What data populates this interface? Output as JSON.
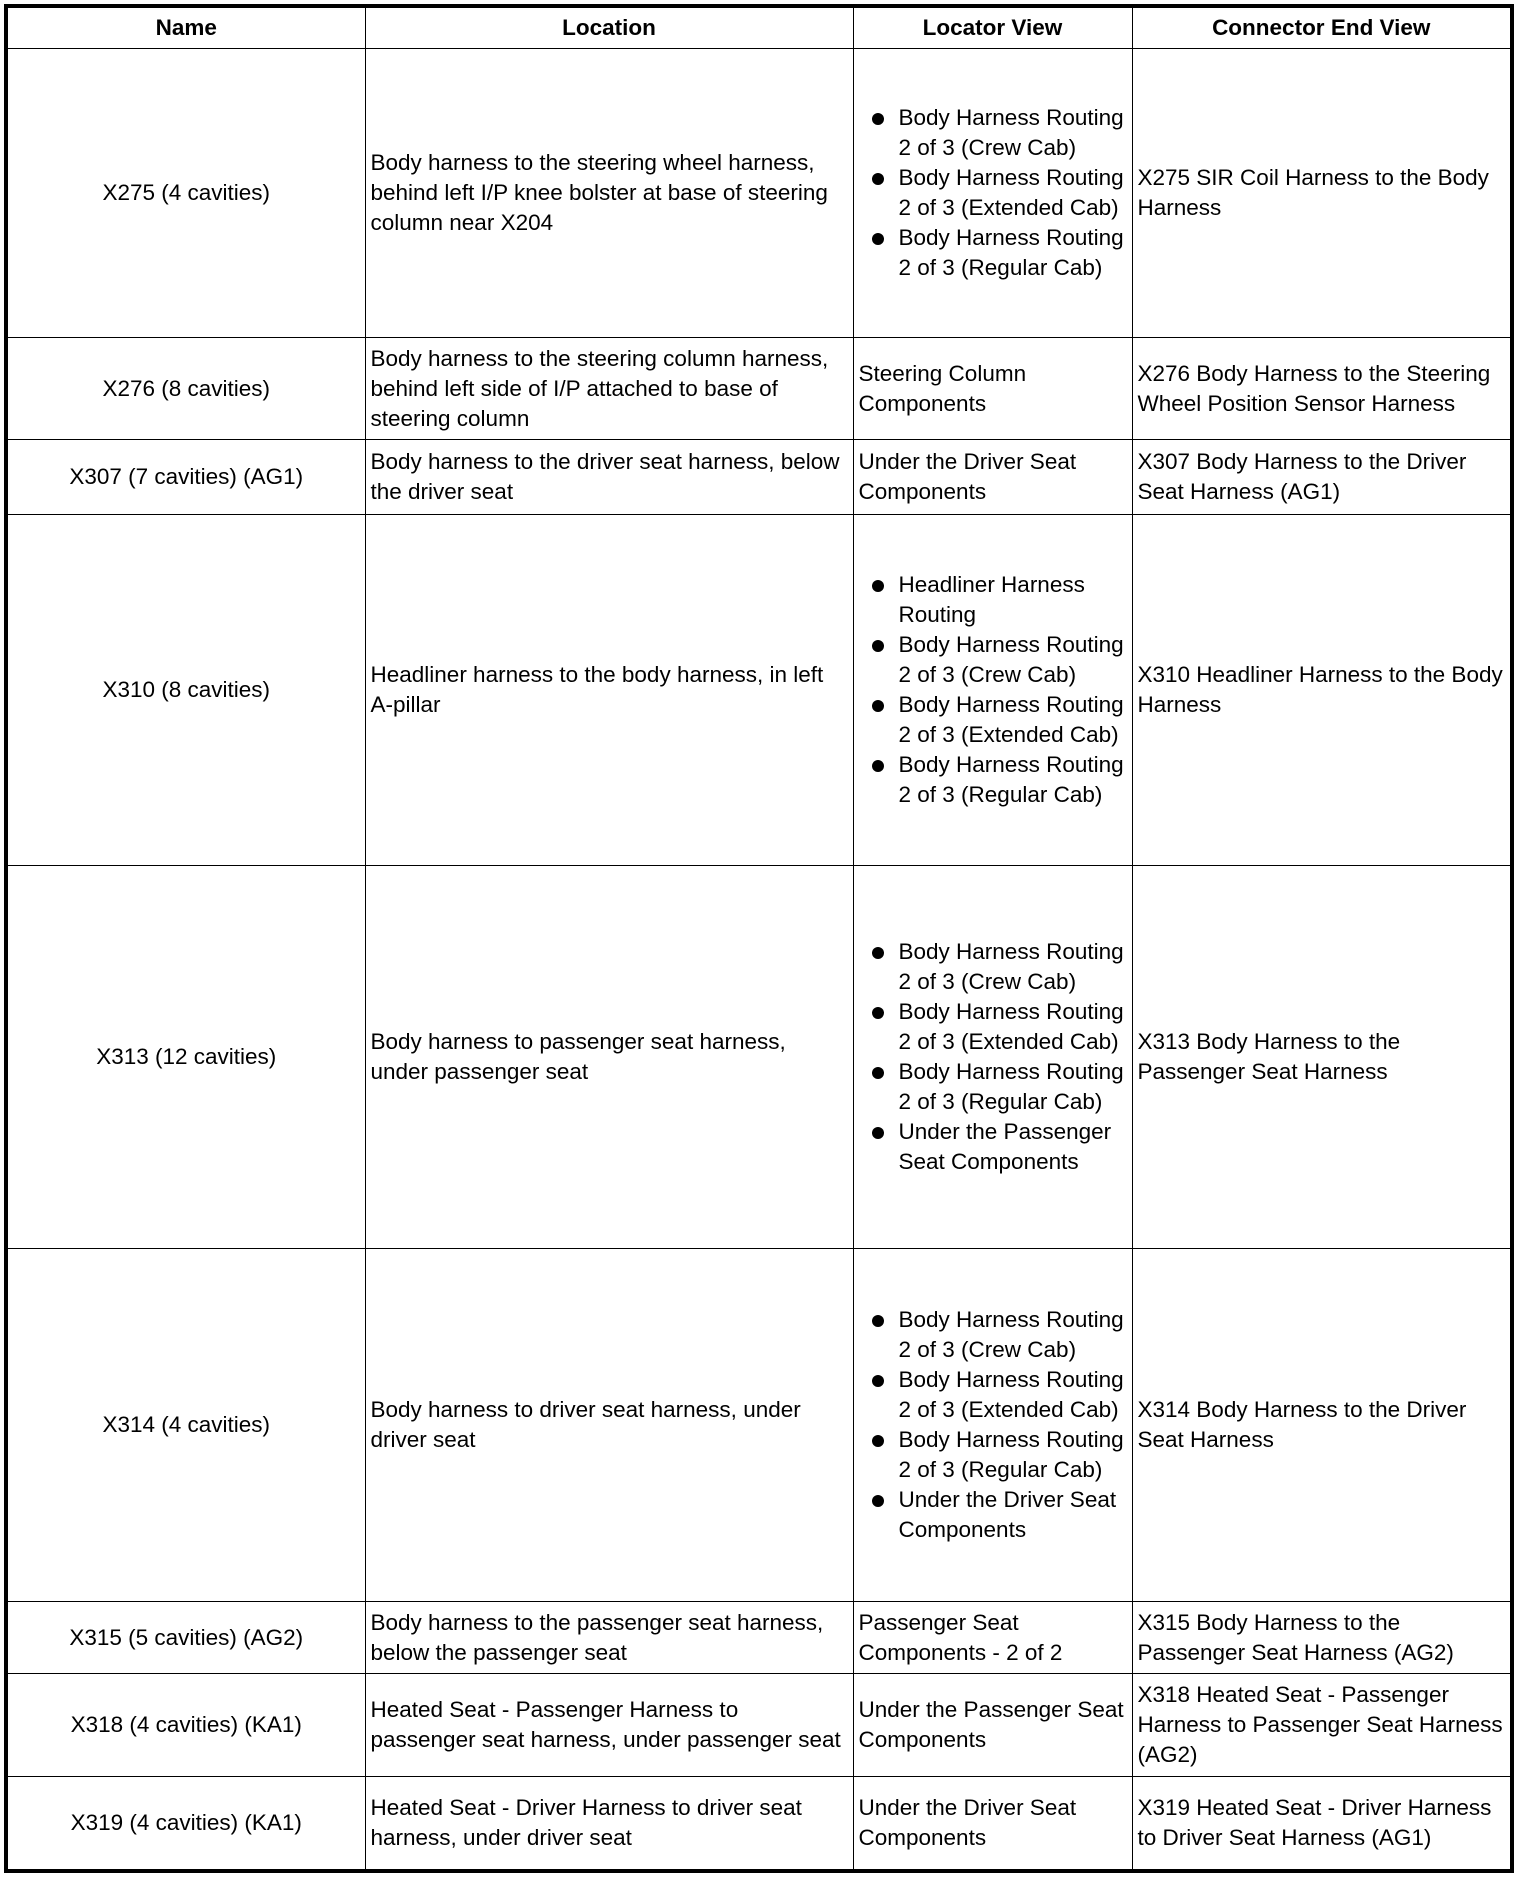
{
  "headers": [
    "Name",
    "Location",
    "Locator View",
    "Connector End View"
  ],
  "rows": [
    {
      "name": "X275 (4 cavities)",
      "location": "Body harness to the steering wheel harness, behind left I/P knee bolster at base of steering column near X204",
      "locator": [
        "Body Harness Routing 2 of 3 (Crew Cab)",
        "Body Harness Routing 2 of 3 (Extended Cab)",
        "Body Harness Routing 2 of 3 (Regular Cab)"
      ],
      "connector": "X275 SIR Coil Harness to the Body Harness"
    },
    {
      "name": "X276 (8 cavities)",
      "location": "Body harness to the steering column harness, behind left side of I/P attached to base of steering column",
      "locator": [
        "Steering Column Components"
      ],
      "connector": "X276 Body Harness to the Steering Wheel Position Sensor Harness"
    },
    {
      "name": "X307 (7 cavities) (AG1)",
      "location": "Body harness to the driver seat harness, below the driver seat",
      "locator": [
        "Under the Driver Seat Components"
      ],
      "connector": "X307 Body Harness to the Driver Seat Harness (AG1)"
    },
    {
      "name": "X310 (8 cavities)",
      "location": "Headliner harness to the body harness, in left A-pillar",
      "locator": [
        "Headliner Harness Routing",
        "Body Harness Routing 2 of 3 (Crew Cab)",
        "Body Harness Routing 2 of 3 (Extended Cab)",
        "Body Harness Routing 2 of 3 (Regular Cab)"
      ],
      "connector": "X310 Headliner Harness to the Body Harness"
    },
    {
      "name": "X313 (12 cavities)",
      "location": "Body harness to passenger seat harness, under passenger seat",
      "locator": [
        "Body Harness Routing 2 of 3 (Crew Cab)",
        "Body Harness Routing 2 of 3 (Extended Cab)",
        "Body Harness Routing 2 of 3 (Regular Cab)",
        "Under the Passenger Seat Components"
      ],
      "connector": "X313 Body Harness to the Passenger Seat Harness"
    },
    {
      "name": "X314 (4 cavities)",
      "location": "Body harness to driver seat harness, under driver seat",
      "locator": [
        "Body Harness Routing 2 of 3 (Crew Cab)",
        "Body Harness Routing 2 of 3 (Extended Cab)",
        "Body Harness Routing 2 of 3 (Regular Cab)",
        "Under the Driver Seat Components"
      ],
      "connector": "X314 Body Harness to the Driver Seat Harness"
    },
    {
      "name": "X315 (5 cavities) (AG2)",
      "location": "Body harness to the passenger seat harness, below the passenger seat",
      "locator": [
        "Passenger Seat Components - 2 of 2"
      ],
      "connector": "X315 Body Harness to the Passenger Seat Harness (AG2)"
    },
    {
      "name": "X318 (4 cavities) (KA1)",
      "location": "Heated Seat - Passenger Harness to passenger seat harness, under passenger seat",
      "locator": [
        "Under the Passenger Seat Components"
      ],
      "connector": "X318 Heated Seat - Passenger Harness to Passenger Seat Harness (AG2)"
    },
    {
      "name": "X319 (4 cavities) (KA1)",
      "location": "Heated Seat - Driver Harness to driver seat harness, under driver seat",
      "locator": [
        "Under the Driver Seat Components"
      ],
      "connector": "X319 Heated Seat - Driver Harness to Driver Seat Harness (AG1)"
    }
  ]
}
